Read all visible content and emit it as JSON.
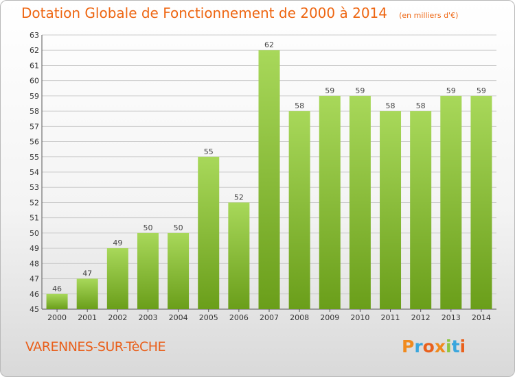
{
  "header": {
    "title": "Dotation Globale de Fonctionnement de 2000 à 2014",
    "unit_note": "(en milliers d'€)"
  },
  "footer": {
    "city": "VARENNES-SUR-TèCHE",
    "logo_text": "Proxiti",
    "logo_colors": [
      "#f08a1d",
      "#3aa6dd",
      "#e9601c",
      "#f08a1d",
      "#8dc63f",
      "#3aa6dd",
      "#e9601c"
    ]
  },
  "colors": {
    "bar_top": "#a8d85a",
    "bar_bottom": "#6a9e1a",
    "grid": "#cccccc",
    "accent": "#ee6612"
  },
  "chart_data": {
    "type": "bar",
    "title": "Dotation Globale de Fonctionnement de 2000 à 2014",
    "subtitle": "(en milliers d'€)",
    "xlabel": "",
    "ylabel": "",
    "categories": [
      "2000",
      "2001",
      "2002",
      "2003",
      "2004",
      "2005",
      "2006",
      "2007",
      "2008",
      "2009",
      "2010",
      "2011",
      "2012",
      "2013",
      "2014"
    ],
    "values": [
      46,
      47,
      49,
      50,
      50,
      55,
      52,
      62,
      58,
      59,
      59,
      58,
      58,
      59,
      59
    ],
    "ylim": [
      45,
      63
    ],
    "yticks": [
      45,
      46,
      47,
      48,
      49,
      50,
      51,
      52,
      53,
      54,
      55,
      56,
      57,
      58,
      59,
      60,
      61,
      62,
      63
    ],
    "grid": true,
    "data_labels": true
  }
}
